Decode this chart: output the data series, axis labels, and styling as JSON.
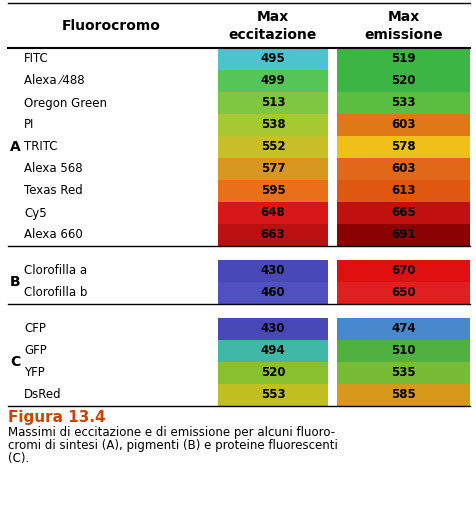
{
  "title_col1": "Fluorocromo",
  "title_col2": "Max\neccitazione",
  "title_col3": "Max\nemissione",
  "figure_label": "Figura 13.4",
  "caption_line1": "Massimi di eccitazione e di emissione per alcuni fluoro-",
  "caption_line2": "cromi di sintesi (A), pigmenti (B) e proteine fluorescenti",
  "caption_line3": "(C).",
  "sections": [
    {
      "label": "A",
      "rows": [
        {
          "name": "FITC",
          "exc_val": "495",
          "em_val": "519",
          "exc_color": "#4BC4D0",
          "em_color": "#3DB545"
        },
        {
          "name": "Alexa ⁄488",
          "exc_val": "499",
          "em_val": "520",
          "exc_color": "#55C558",
          "em_color": "#3DB545"
        },
        {
          "name": "Oregon Green",
          "exc_val": "513",
          "em_val": "533",
          "exc_color": "#7DC840",
          "em_color": "#5CBE40"
        },
        {
          "name": "PI",
          "exc_val": "538",
          "em_val": "603",
          "exc_color": "#A8C830",
          "em_color": "#E07818"
        },
        {
          "name": "TRITC",
          "exc_val": "552",
          "em_val": "578",
          "exc_color": "#C8BE28",
          "em_color": "#F0BF18"
        },
        {
          "name": "Alexa 568",
          "exc_val": "577",
          "em_val": "603",
          "exc_color": "#D89820",
          "em_color": "#E06818"
        },
        {
          "name": "Texas Red",
          "exc_val": "595",
          "em_val": "613",
          "exc_color": "#E87018",
          "em_color": "#E05810"
        },
        {
          "name": "Cy5",
          "exc_val": "648",
          "em_val": "665",
          "exc_color": "#D81818",
          "em_color": "#C01010"
        },
        {
          "name": "Alexa 660",
          "exc_val": "663",
          "em_val": "691",
          "exc_color": "#BB1010",
          "em_color": "#8B0000"
        }
      ]
    },
    {
      "label": "B",
      "rows": [
        {
          "name": "Clorofilla a",
          "exc_val": "430",
          "em_val": "670",
          "exc_color": "#4848B8",
          "em_color": "#E01010"
        },
        {
          "name": "Clorofilla b",
          "exc_val": "460",
          "em_val": "650",
          "exc_color": "#5050C0",
          "em_color": "#E02020"
        }
      ]
    },
    {
      "label": "C",
      "rows": [
        {
          "name": "CFP",
          "exc_val": "430",
          "em_val": "474",
          "exc_color": "#4848B8",
          "em_color": "#4888CC"
        },
        {
          "name": "GFP",
          "exc_val": "494",
          "em_val": "510",
          "exc_color": "#40B8A8",
          "em_color": "#50B040"
        },
        {
          "name": "YFP",
          "exc_val": "520",
          "em_val": "535",
          "exc_color": "#88C030",
          "em_color": "#78BC35"
        },
        {
          "name": "DsRed",
          "exc_val": "553",
          "em_val": "585",
          "exc_color": "#C0BE20",
          "em_color": "#D8981A"
        }
      ]
    }
  ],
  "bg_color": "#FFFFFF",
  "text_color": "#000000",
  "figure_label_color": "#CC4400"
}
